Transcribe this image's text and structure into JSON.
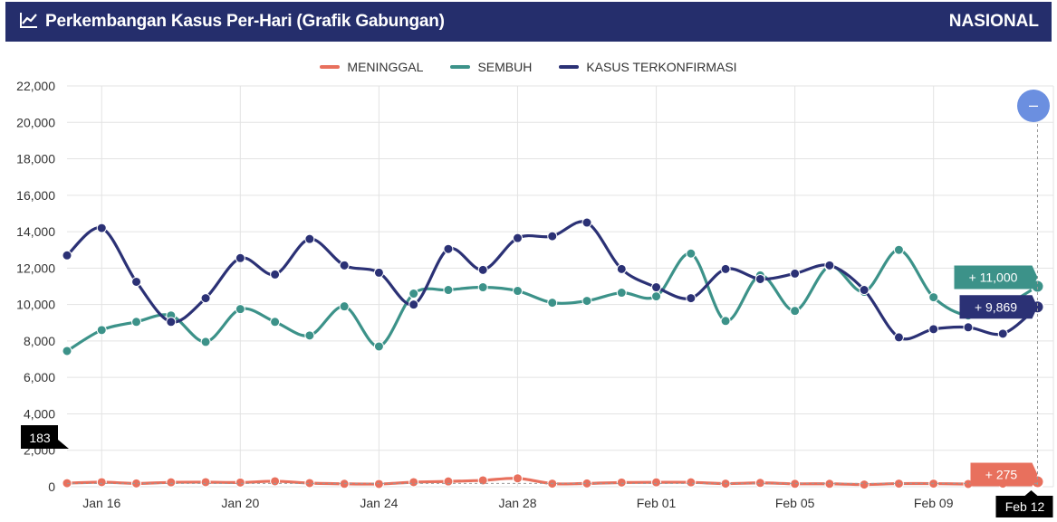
{
  "header": {
    "title": "Perkembangan Kasus Per-Hari (Grafik Gabungan)",
    "region": "NASIONAL",
    "icon": "line-chart-icon"
  },
  "colors": {
    "header_bg": "#252e6c",
    "meninggal": "#e8705d",
    "sembuh": "#3c9289",
    "kasus": "#2b3175",
    "zoom_button": "#6b8fe0"
  },
  "legend": [
    {
      "label": "MENINGGAL",
      "color": "#e8705d"
    },
    {
      "label": "SEMBUH",
      "color": "#3c9289"
    },
    {
      "label": "KASUS TERKONFIRMASI",
      "color": "#2b3175"
    }
  ],
  "chart_data": {
    "type": "line",
    "x": [
      "Jan 15",
      "Jan 16",
      "Jan 17",
      "Jan 18",
      "Jan 19",
      "Jan 20",
      "Jan 21",
      "Jan 22",
      "Jan 23",
      "Jan 24",
      "Jan 25",
      "Jan 26",
      "Jan 27",
      "Jan 28",
      "Jan 29",
      "Jan 30",
      "Jan 31",
      "Feb 01",
      "Feb 02",
      "Feb 03",
      "Feb 04",
      "Feb 05",
      "Feb 06",
      "Feb 07",
      "Feb 08",
      "Feb 09",
      "Feb 10",
      "Feb 11",
      "Feb 12"
    ],
    "x_ticks": [
      "Jan 16",
      "Jan 20",
      "Jan 24",
      "Jan 28",
      "Feb 01",
      "Feb 05",
      "Feb 09"
    ],
    "series": [
      {
        "name": "MENINGGAL",
        "color": "#e8705d",
        "values": [
          195,
          250,
          180,
          240,
          250,
          230,
          300,
          200,
          160,
          150,
          250,
          290,
          350,
          460,
          170,
          180,
          230,
          240,
          240,
          170,
          210,
          160,
          160,
          120,
          170,
          170,
          150,
          170,
          275
        ]
      },
      {
        "name": "SEMBUH",
        "color": "#3c9289",
        "values": [
          7450,
          8600,
          9050,
          9400,
          7950,
          9750,
          9050,
          8300,
          9900,
          7700,
          10600,
          10800,
          10950,
          10750,
          10100,
          10200,
          10650,
          10450,
          12800,
          9100,
          11600,
          9650,
          12100,
          10700,
          13000,
          10400,
          9400,
          9900,
          11000
        ]
      },
      {
        "name": "KASUS TERKONFIRMASI",
        "color": "#2b3175",
        "values": [
          12700,
          14200,
          11250,
          9050,
          10350,
          12550,
          11650,
          13600,
          12150,
          11750,
          10000,
          13050,
          11900,
          13650,
          13750,
          14500,
          11950,
          10950,
          10350,
          11950,
          11400,
          11700,
          12150,
          10800,
          8200,
          8650,
          8750,
          8400,
          9869
        ]
      }
    ],
    "y_ticks": [
      "0",
      "2,000",
      "4,000",
      "6,000",
      "8,000",
      "10,000",
      "12,000",
      "14,000",
      "16,000",
      "18,000",
      "20,000",
      "22,000"
    ],
    "ylim": [
      0,
      22000
    ],
    "grid": true,
    "legend_position": "top-center",
    "crosshair": {
      "x_label": "Feb 12",
      "y_label": "183",
      "tooltips": [
        {
          "text": "+ 11,000",
          "series": "SEMBUH",
          "color": "#3c9289"
        },
        {
          "text": "+ 9,869",
          "series": "KASUS TERKONFIRMASI",
          "color": "#2b3175"
        },
        {
          "text": "+ 275",
          "series": "MENINGGAL",
          "color": "#e8705d"
        }
      ]
    },
    "zoom_button_symbol": "–"
  }
}
